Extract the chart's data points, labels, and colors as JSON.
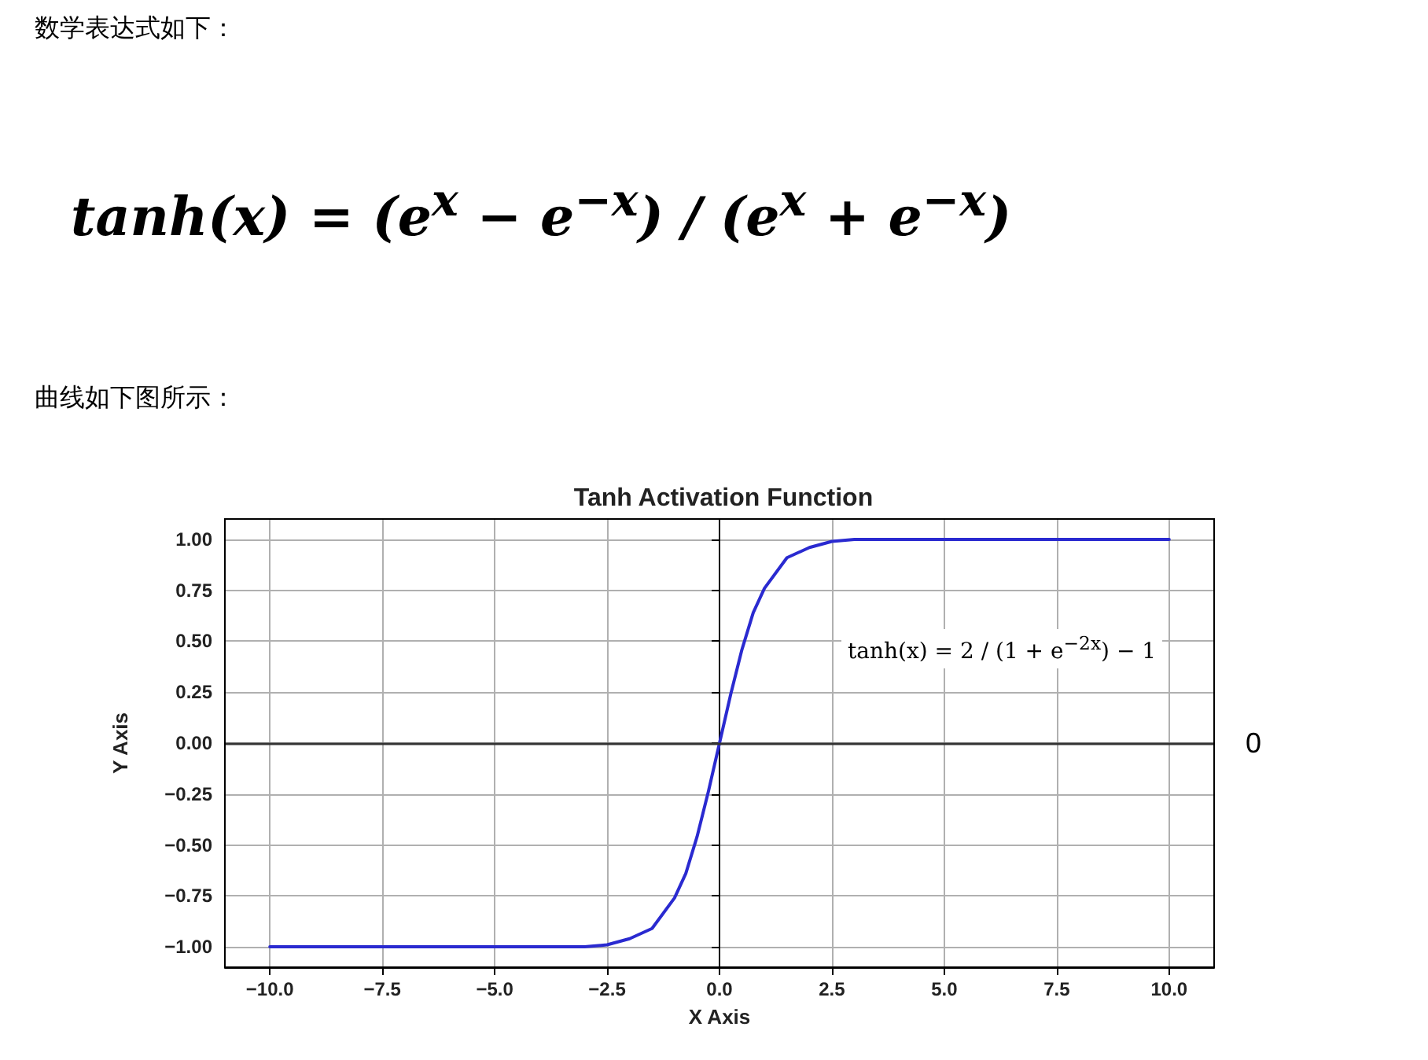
{
  "chart_data": {
    "type": "line",
    "title": "Tanh Activation Function",
    "xlabel": "X Axis",
    "ylabel": "Y Axis",
    "annotations": [
      "数学表达式如下：",
      "tanh(x) = (e$^{x}$ − e$^{−x}$) / (e$^{x}$ + e$^{−x}$)",
      "曲线如下图所示：",
      "tanh(x) = 2 / (1 + e$^{−2x}$) − 1"
    ],
    "x": [
      -10,
      -5,
      -3,
      -2.5,
      -2,
      -1.5,
      -1,
      -0.75,
      -0.5,
      -0.25,
      0,
      0.25,
      0.5,
      0.75,
      1,
      1.5,
      2,
      2.5,
      3,
      5,
      10
    ],
    "series": [
      {
        "color": "#2a2ad0",
        "values": [
          -1,
          -1,
          -1,
          -0.99,
          -0.96,
          -0.91,
          -0.76,
          -0.64,
          -0.46,
          -0.24,
          0,
          0.24,
          0.46,
          0.64,
          0.76,
          0.91,
          0.96,
          0.99,
          1,
          1,
          1
        ]
      }
    ],
    "xlim": [
      -11,
      11
    ],
    "ylim": [
      -1.1,
      1.1
    ],
    "xticks": [
      {
        "value": -10,
        "label": "−10.0"
      },
      {
        "value": -7.5,
        "label": "−7.5"
      },
      {
        "value": -5,
        "label": "−5.0"
      },
      {
        "value": -2.5,
        "label": "−2.5"
      },
      {
        "value": 0,
        "label": "0.0"
      },
      {
        "value": 2.5,
        "label": "2.5"
      },
      {
        "value": 5,
        "label": "5.0"
      },
      {
        "value": 7.5,
        "label": "7.5"
      },
      {
        "value": 10,
        "label": "10.0"
      }
    ],
    "yticks": [
      {
        "value": -1,
        "label": "−1.00"
      },
      {
        "value": -0.75,
        "label": "−0.75"
      },
      {
        "value": -0.5,
        "label": "−0.50"
      },
      {
        "value": -0.25,
        "label": "−0.25"
      },
      {
        "value": 0,
        "label": "0.00"
      },
      {
        "value": 0.25,
        "label": "0.25"
      },
      {
        "value": 0.5,
        "label": "0.50"
      },
      {
        "value": 0.75,
        "label": "0.75"
      },
      {
        "value": 1,
        "label": "1.00"
      }
    ],
    "grid": true,
    "marker": "none",
    "line_style": "solid",
    "ref_lines": [
      {
        "axis": "y",
        "value": 0,
        "label": "0",
        "color": "#333333"
      }
    ]
  }
}
